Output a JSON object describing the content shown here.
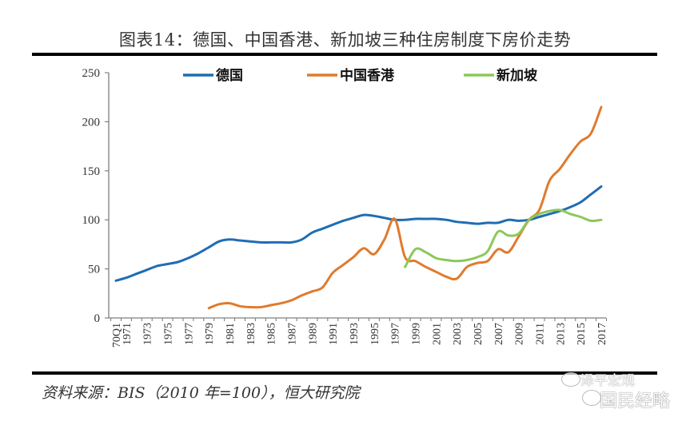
{
  "header": {
    "title": "图表14：德国、中国香港、新加坡三种住房制度下房价走势"
  },
  "footer": {
    "source": "资料来源：BIS（2010 年=100），恒大研究院",
    "watermark_line1": "泽平宏观",
    "watermark_line2": "国民经略"
  },
  "chart_data": {
    "type": "line",
    "title": "图表14：德国、中国香港、新加坡三种住房制度下房价走势",
    "xlabel": "",
    "ylabel": "",
    "ylim": [
      0,
      250
    ],
    "yticks": [
      "0",
      "50",
      "100",
      "150",
      "200",
      "250"
    ],
    "xlim": [
      1970,
      2017
    ],
    "xtick_labels": [
      "70Q1",
      "1971",
      "1973",
      "1975",
      "1977",
      "1979",
      "1981",
      "1983",
      "1985",
      "1987",
      "1989",
      "1991",
      "1993",
      "1995",
      "1997",
      "1999",
      "2001",
      "2003",
      "2005",
      "2007",
      "2009",
      "2011",
      "2013",
      "2015",
      "2017"
    ],
    "legend_position": "top",
    "grid": false,
    "series": [
      {
        "name": "德国",
        "color": "#1F6DB3",
        "x": [
          1970,
          1971,
          1972,
          1973,
          1974,
          1975,
          1976,
          1977,
          1978,
          1979,
          1980,
          1981,
          1982,
          1983,
          1984,
          1985,
          1986,
          1987,
          1988,
          1989,
          1990,
          1991,
          1992,
          1993,
          1994,
          1995,
          1996,
          1997,
          1998,
          1999,
          2000,
          2001,
          2002,
          2003,
          2004,
          2005,
          2006,
          2007,
          2008,
          2009,
          2010,
          2011,
          2012,
          2013,
          2014,
          2015,
          2016,
          2017
        ],
        "values": [
          38,
          41,
          45,
          49,
          53,
          55,
          57,
          61,
          66,
          72,
          78,
          80,
          79,
          78,
          77,
          77,
          77,
          77,
          80,
          87,
          91,
          95,
          99,
          102,
          105,
          104,
          102,
          100,
          100,
          101,
          101,
          101,
          100,
          98,
          97,
          96,
          97,
          97,
          100,
          99,
          100,
          103,
          106,
          109,
          113,
          118,
          126,
          134
        ]
      },
      {
        "name": "中国香港",
        "color": "#E07A2E",
        "x": [
          1979,
          1980,
          1981,
          1982,
          1983,
          1984,
          1985,
          1986,
          1987,
          1988,
          1989,
          1990,
          1991,
          1992,
          1993,
          1994,
          1995,
          1996,
          1997,
          1998,
          1999,
          2000,
          2001,
          2002,
          2003,
          2004,
          2005,
          2006,
          2007,
          2008,
          2009,
          2010,
          2011,
          2012,
          2013,
          2014,
          2015,
          2016,
          2017
        ],
        "values": [
          10,
          14,
          15,
          12,
          11,
          11,
          13,
          15,
          18,
          23,
          27,
          31,
          46,
          54,
          62,
          71,
          65,
          80,
          101,
          62,
          58,
          52,
          47,
          42,
          40,
          52,
          56,
          58,
          70,
          67,
          83,
          100,
          110,
          140,
          152,
          167,
          180,
          188,
          215
        ]
      },
      {
        "name": "新加坡",
        "color": "#8CC85A",
        "x": [
          1998,
          1999,
          2000,
          2001,
          2002,
          2003,
          2004,
          2005,
          2006,
          2007,
          2008,
          2009,
          2010,
          2011,
          2012,
          2013,
          2014,
          2015,
          2016,
          2017
        ],
        "values": [
          52,
          70,
          67,
          61,
          59,
          58,
          59,
          62,
          68,
          88,
          84,
          86,
          100,
          106,
          109,
          110,
          106,
          103,
          99,
          100
        ]
      }
    ]
  }
}
